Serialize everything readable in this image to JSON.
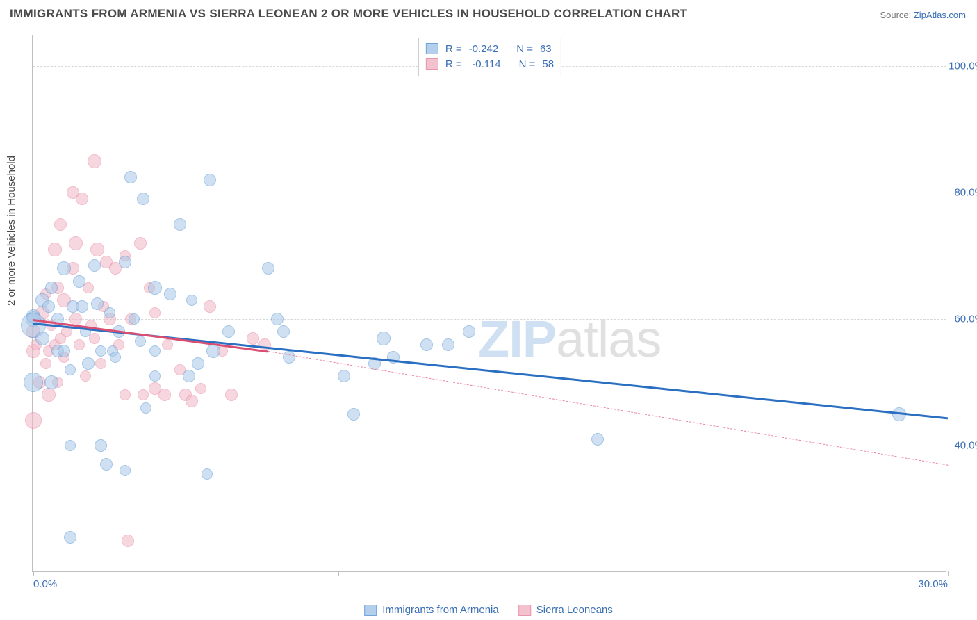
{
  "title": "IMMIGRANTS FROM ARMENIA VS SIERRA LEONEAN 2 OR MORE VEHICLES IN HOUSEHOLD CORRELATION CHART",
  "source_prefix": "Source: ",
  "source_name": "ZipAtlas.com",
  "ylabel": "2 or more Vehicles in Household",
  "chart": {
    "type": "scatter",
    "background_color": "#ffffff",
    "grid_color": "#d8d8d8",
    "axis_color": "#bfbfbf",
    "tick_label_color": "#3a6fb5",
    "axis_label_color": "#4a4a4a",
    "title_color": "#4a4a4a",
    "title_fontsize": 17,
    "label_fontsize": 15,
    "xlim": [
      0,
      30
    ],
    "ylim": [
      20,
      105
    ],
    "yticks": [
      40,
      60,
      80,
      100
    ],
    "ytick_labels": [
      "40.0%",
      "60.0%",
      "80.0%",
      "100.0%"
    ],
    "xticks": [
      0,
      5,
      10,
      15,
      20,
      25,
      30
    ],
    "xtick_labels": [
      "0.0%",
      "",
      "",
      "",
      "",
      "",
      "30.0%"
    ],
    "watermark": {
      "text_a": "ZIP",
      "text_b": "atlas",
      "color_a": "#cfe0f2",
      "color_b": "#e0e0e0",
      "fontsize": 74
    }
  },
  "series": [
    {
      "name": "Immigrants from Armenia",
      "fill_color": "#a8c7e8",
      "stroke_color": "#5a96d4",
      "line_color": "#2a6fc2",
      "fill_opacity": 0.55,
      "marker_radius": 9,
      "r_value": "-0.242",
      "n_value": "63",
      "trend": {
        "x1": 0,
        "y1": 59.5,
        "x2": 30,
        "y2": 44.5,
        "dash_from": 30
      },
      "points": [
        [
          0.0,
          60,
          11
        ],
        [
          0.0,
          60.5,
          10
        ],
        [
          0.0,
          59,
          18
        ],
        [
          0.0,
          50,
          14
        ],
        [
          0.3,
          63,
          10
        ],
        [
          0.3,
          57,
          10
        ],
        [
          0.5,
          62,
          9
        ],
        [
          0.6,
          65,
          9
        ],
        [
          0.6,
          50,
          10
        ],
        [
          0.8,
          55,
          9
        ],
        [
          0.8,
          60,
          9
        ],
        [
          1.0,
          68,
          10
        ],
        [
          1.0,
          55,
          9
        ],
        [
          1.2,
          40,
          8
        ],
        [
          1.2,
          52,
          8
        ],
        [
          1.3,
          62,
          9
        ],
        [
          1.5,
          66,
          9
        ],
        [
          1.6,
          62,
          9
        ],
        [
          1.7,
          58,
          8
        ],
        [
          1.8,
          53,
          9
        ],
        [
          2.0,
          68.5,
          9
        ],
        [
          2.1,
          62.5,
          9
        ],
        [
          2.2,
          40,
          9
        ],
        [
          2.2,
          55,
          8
        ],
        [
          2.4,
          37,
          9
        ],
        [
          2.5,
          61,
          8
        ],
        [
          2.6,
          55,
          8
        ],
        [
          2.7,
          54,
          8
        ],
        [
          2.8,
          58,
          9
        ],
        [
          3.0,
          69,
          9
        ],
        [
          3.0,
          36,
          8
        ],
        [
          3.2,
          82.5,
          9
        ],
        [
          3.3,
          60,
          8
        ],
        [
          3.5,
          56.5,
          8
        ],
        [
          3.6,
          79,
          9
        ],
        [
          3.7,
          46,
          8
        ],
        [
          4.0,
          65,
          10
        ],
        [
          4.0,
          55,
          8
        ],
        [
          4.0,
          51,
          8
        ],
        [
          4.5,
          64,
          9
        ],
        [
          4.8,
          75,
          9
        ],
        [
          5.1,
          51,
          9
        ],
        [
          5.2,
          63,
          8
        ],
        [
          5.4,
          53,
          9
        ],
        [
          5.7,
          35.5,
          8
        ],
        [
          5.8,
          82,
          9
        ],
        [
          5.9,
          55,
          10
        ],
        [
          6.4,
          58,
          9
        ],
        [
          7.7,
          68,
          9
        ],
        [
          8.0,
          60,
          9
        ],
        [
          8.2,
          58,
          9
        ],
        [
          8.4,
          54,
          9
        ],
        [
          10.2,
          51,
          9
        ],
        [
          10.5,
          45,
          9
        ],
        [
          11.2,
          53,
          9
        ],
        [
          11.5,
          57,
          10
        ],
        [
          11.8,
          54,
          9
        ],
        [
          12.9,
          56,
          9
        ],
        [
          13.6,
          56,
          9
        ],
        [
          14.3,
          58,
          9
        ],
        [
          18.5,
          41,
          9
        ],
        [
          28.4,
          45,
          10
        ],
        [
          1.2,
          25.5,
          9
        ]
      ]
    },
    {
      "name": "Sierra Leoneans",
      "fill_color": "#f2b8c6",
      "stroke_color": "#e7859f",
      "line_color": "#d94f73",
      "fill_opacity": 0.55,
      "marker_radius": 9,
      "r_value": "-0.114",
      "n_value": "58",
      "trend": {
        "x1": 0,
        "y1": 60,
        "x2": 7.7,
        "y2": 55,
        "dash_from": 7.7,
        "dash_x2": 30,
        "dash_y2": 37
      },
      "points": [
        [
          0.0,
          58,
          10
        ],
        [
          0.0,
          55,
          10
        ],
        [
          0.0,
          44,
          12
        ],
        [
          0.1,
          56,
          8
        ],
        [
          0.2,
          50,
          9
        ],
        [
          0.3,
          61,
          10
        ],
        [
          0.4,
          53,
          8
        ],
        [
          0.4,
          64,
          8
        ],
        [
          0.5,
          48,
          10
        ],
        [
          0.5,
          55,
          8
        ],
        [
          0.6,
          59,
          8
        ],
        [
          0.7,
          71,
          10
        ],
        [
          0.7,
          56,
          8
        ],
        [
          0.8,
          65,
          9
        ],
        [
          0.8,
          50,
          8
        ],
        [
          0.9,
          75,
          9
        ],
        [
          0.9,
          57,
          8
        ],
        [
          1.0,
          63,
          10
        ],
        [
          1.0,
          54,
          8
        ],
        [
          1.1,
          58,
          8
        ],
        [
          1.3,
          80,
          9
        ],
        [
          1.3,
          68,
          9
        ],
        [
          1.4,
          72,
          10
        ],
        [
          1.4,
          60,
          9
        ],
        [
          1.5,
          56,
          8
        ],
        [
          1.6,
          79,
          9
        ],
        [
          1.7,
          51,
          8
        ],
        [
          1.8,
          65,
          8
        ],
        [
          1.9,
          59,
          8
        ],
        [
          2.0,
          85,
          10
        ],
        [
          2.0,
          57,
          8
        ],
        [
          2.1,
          71,
          10
        ],
        [
          2.2,
          53,
          8
        ],
        [
          2.3,
          62,
          8
        ],
        [
          2.4,
          69,
          9
        ],
        [
          2.5,
          60,
          9
        ],
        [
          2.7,
          68,
          9
        ],
        [
          2.8,
          56,
          8
        ],
        [
          3.0,
          70,
          8
        ],
        [
          3.0,
          48,
          8
        ],
        [
          3.1,
          25,
          9
        ],
        [
          3.2,
          60,
          8
        ],
        [
          3.5,
          72,
          9
        ],
        [
          3.6,
          48,
          8
        ],
        [
          3.8,
          65,
          8
        ],
        [
          4.0,
          49,
          9
        ],
        [
          4.0,
          61,
          8
        ],
        [
          4.3,
          48,
          9
        ],
        [
          4.4,
          56,
          8
        ],
        [
          4.8,
          52,
          8
        ],
        [
          5.0,
          48,
          9
        ],
        [
          5.2,
          47,
          9
        ],
        [
          5.5,
          49,
          8
        ],
        [
          5.8,
          62,
          9
        ],
        [
          6.2,
          55,
          8
        ],
        [
          6.5,
          48,
          9
        ],
        [
          7.2,
          57,
          9
        ],
        [
          7.6,
          56,
          9
        ]
      ]
    }
  ],
  "legend_top": {
    "r_label": "R =",
    "n_label": "N ="
  },
  "legend_bottom_labels": [
    "Immigrants from Armenia",
    "Sierra Leoneans"
  ]
}
